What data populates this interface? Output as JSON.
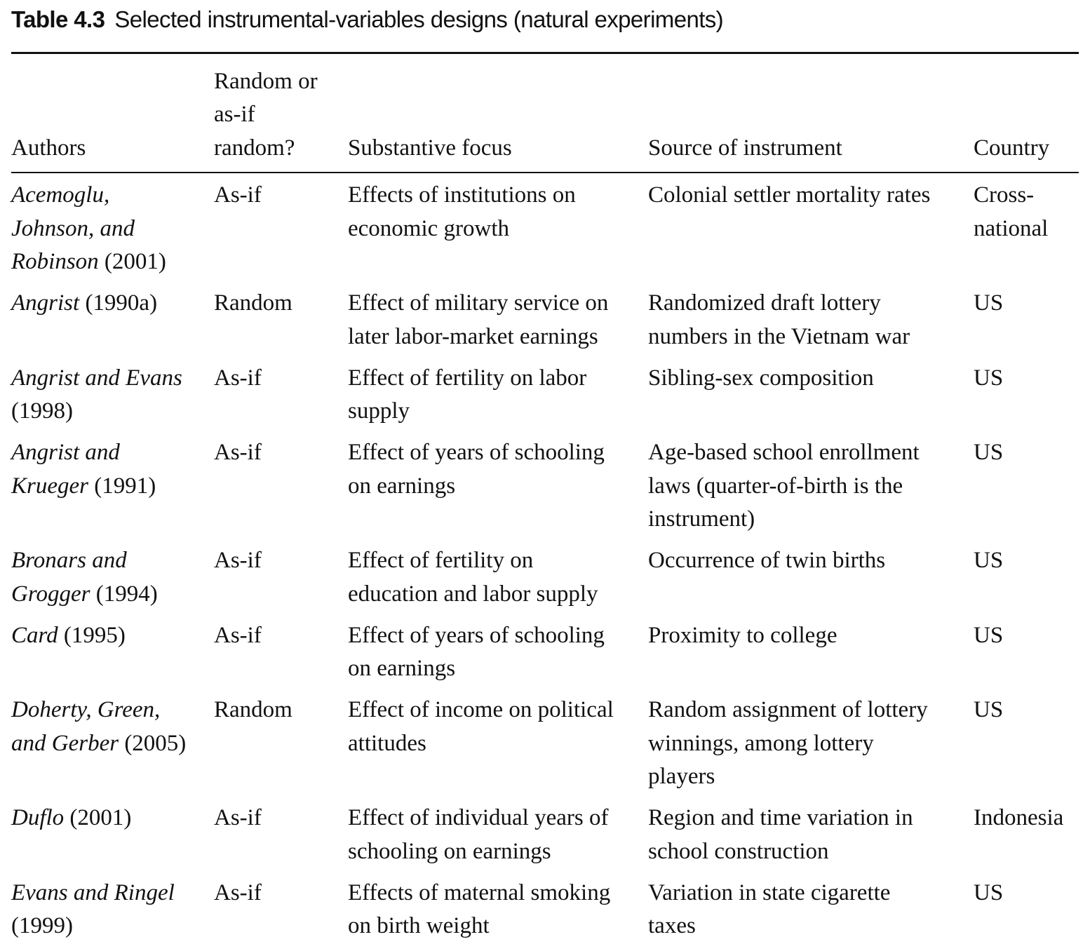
{
  "caption": {
    "label": "Table 4.3",
    "title": "Selected instrumental-variables designs (natural experiments)"
  },
  "columns": {
    "authors": "Authors",
    "random": "Random or\nas-if\nrandom?",
    "focus": "Substantive focus",
    "instrument": "Source of instrument",
    "country": "Country"
  },
  "rows": [
    {
      "authors_names": "Acemoglu,\nJohnson, and\nRobinson",
      "year": "(2001)",
      "random": "As-if",
      "focus": "Effects of institutions on\neconomic growth",
      "instrument": "Colonial settler mortality rates",
      "country": "Cross-\nnational"
    },
    {
      "authors_names": "Angrist",
      "year": "(1990a)",
      "random": "Random",
      "focus": "Effect of military service on\nlater labor-market earnings",
      "instrument": "Randomized draft lottery\nnumbers in the Vietnam war",
      "country": "US"
    },
    {
      "authors_names": "Angrist and Evans",
      "year": "(1998)",
      "random": "As-if",
      "focus": "Effect of fertility on labor\nsupply",
      "instrument": "Sibling-sex composition",
      "country": "US"
    },
    {
      "authors_names": "Angrist and\nKrueger",
      "year": "(1991)",
      "random": "As-if",
      "focus": "Effect of years of schooling\non earnings",
      "instrument": "Age-based school enrollment\nlaws (quarter-of-birth is the\ninstrument)",
      "country": "US"
    },
    {
      "authors_names": "Bronars and\nGrogger",
      "year": "(1994)",
      "random": "As-if",
      "focus": "Effect of fertility on\neducation and labor supply",
      "instrument": "Occurrence of twin births",
      "country": "US"
    },
    {
      "authors_names": "Card",
      "year": "(1995)",
      "random": "As-if",
      "focus": "Effect of years of schooling\non earnings",
      "instrument": "Proximity to college",
      "country": "US"
    },
    {
      "authors_names": "Doherty, Green,\nand Gerber",
      "year": "(2005)",
      "random": "Random",
      "focus": "Effect of income on political\nattitudes",
      "instrument": "Random assignment of lottery\nwinnings, among lottery\nplayers",
      "country": "US"
    },
    {
      "authors_names": "Duflo",
      "year": "(2001)",
      "random": "As-if",
      "focus": "Effect of individual years of\nschooling on earnings",
      "instrument": "Region and time variation in\nschool construction",
      "country": "Indonesia"
    },
    {
      "authors_names": "Evans and Ringel",
      "year": "(1999)",
      "random": "As-if",
      "focus": "Effects of maternal smoking\non birth weight",
      "instrument": "Variation in state cigarette\ntaxes",
      "country": "US"
    }
  ]
}
